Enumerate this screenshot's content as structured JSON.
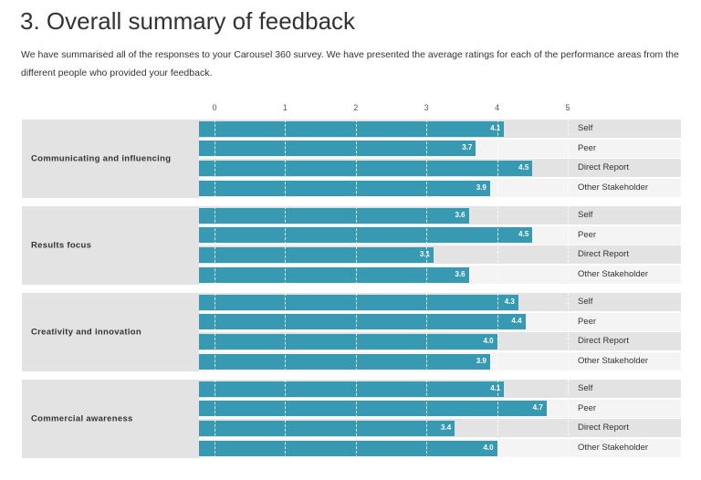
{
  "title": "3. Overall summary of feedback",
  "intro": "We have summarised all of the responses to your Carousel 360 survey. We have presented the average ratings for each of the performance areas from the different people who provided your feedback.",
  "chart_data": {
    "type": "bar",
    "orientation": "horizontal",
    "xlim": [
      0,
      5
    ],
    "ticks": [
      "0",
      "1",
      "2",
      "3",
      "4",
      "5"
    ],
    "grid": true,
    "bar_color": "#3799b2",
    "row_colors": [
      "#e3e3e3",
      "#f4f4f4"
    ],
    "respondents": [
      "Self",
      "Peer",
      "Direct Report",
      "Other Stakeholder"
    ],
    "groups": [
      {
        "name": "Communicating and influencing",
        "values": [
          4.1,
          3.7,
          4.5,
          3.9
        ]
      },
      {
        "name": "Results focus",
        "values": [
          3.6,
          4.5,
          3.1,
          3.6
        ]
      },
      {
        "name": "Creativity and innovation",
        "values": [
          4.3,
          4.4,
          4.0,
          3.9
        ]
      },
      {
        "name": "Commercial awareness",
        "values": [
          4.1,
          4.7,
          3.4,
          4.0
        ]
      }
    ]
  }
}
